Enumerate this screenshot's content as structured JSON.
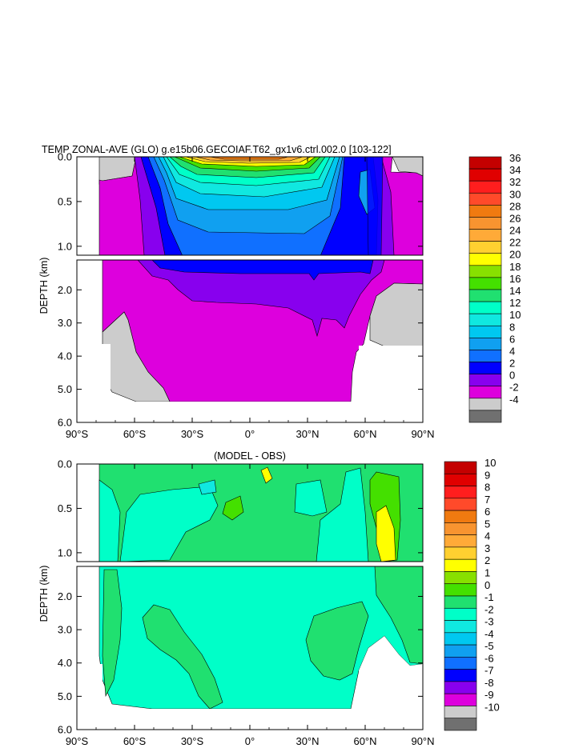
{
  "chart_data": [
    {
      "type": "heatmap",
      "title": "TEMP ZONAL-AVE (GLO) g.e15b06.GECOIAF.T62_gx1v6.ctrl.002.0 [103-122]",
      "ylabel": "DEPTH (km)",
      "xlabel": "",
      "x_range": [
        -90,
        90
      ],
      "x_ticks": [
        "90°S",
        "60°S",
        "30°S",
        "0°",
        "30°N",
        "60°N",
        "90°N"
      ],
      "y_range": [
        0,
        6
      ],
      "y_break_km": 1.1,
      "y_ticks_upper": [
        "0.0",
        "0.5",
        "1.0"
      ],
      "y_ticks_lower": [
        "2.0",
        "3.0",
        "4.0",
        "5.0",
        "6.0"
      ],
      "colorbar_labels": [
        "36",
        "34",
        "32",
        "30",
        "28",
        "26",
        "24",
        "22",
        "20",
        "18",
        "16",
        "14",
        "12",
        "10",
        "8",
        "6",
        "4",
        "2",
        "0",
        "-2",
        "-4"
      ],
      "colorbar_colors": [
        "#c40000",
        "#e00000",
        "#ff1e1e",
        "#ff4a2a",
        "#f07a10",
        "#f89430",
        "#ffaa38",
        "#ffd030",
        "#ffff00",
        "#88e000",
        "#44e000",
        "#20e070",
        "#00ffc8",
        "#10e8e0",
        "#00c8f0",
        "#10a0f0",
        "#1070ff",
        "#0000ff",
        "#8800ee",
        "#dd00dd",
        "#cccccc",
        "#707070"
      ]
    },
    {
      "type": "heatmap",
      "title": "(MODEL - OBS)",
      "ylabel": "DEPTH (km)",
      "xlabel": "",
      "x_range": [
        -90,
        90
      ],
      "x_ticks": [
        "90°S",
        "60°S",
        "30°S",
        "0°",
        "30°N",
        "60°N",
        "90°N"
      ],
      "y_range": [
        0,
        6
      ],
      "y_break_km": 1.1,
      "y_ticks_upper": [
        "0.0",
        "0.5",
        "1.0"
      ],
      "y_ticks_lower": [
        "2.0",
        "3.0",
        "4.0",
        "5.0",
        "6.0"
      ],
      "colorbar_labels": [
        "10",
        "9",
        "8",
        "7",
        "6",
        "5",
        "4",
        "3",
        "2",
        "1",
        "0",
        "-1",
        "-2",
        "-3",
        "-4",
        "-5",
        "-6",
        "-7",
        "-8",
        "-9",
        "-10"
      ],
      "colorbar_colors": [
        "#c40000",
        "#e00000",
        "#ff1e1e",
        "#ff4a2a",
        "#f07a10",
        "#f89430",
        "#ffaa38",
        "#ffd030",
        "#ffff00",
        "#88e000",
        "#44e000",
        "#20e070",
        "#00ffc8",
        "#10e8e0",
        "#00c8f0",
        "#10a0f0",
        "#1070ff",
        "#0000ff",
        "#8800ee",
        "#dd00dd",
        "#cccccc",
        "#707070"
      ]
    }
  ]
}
